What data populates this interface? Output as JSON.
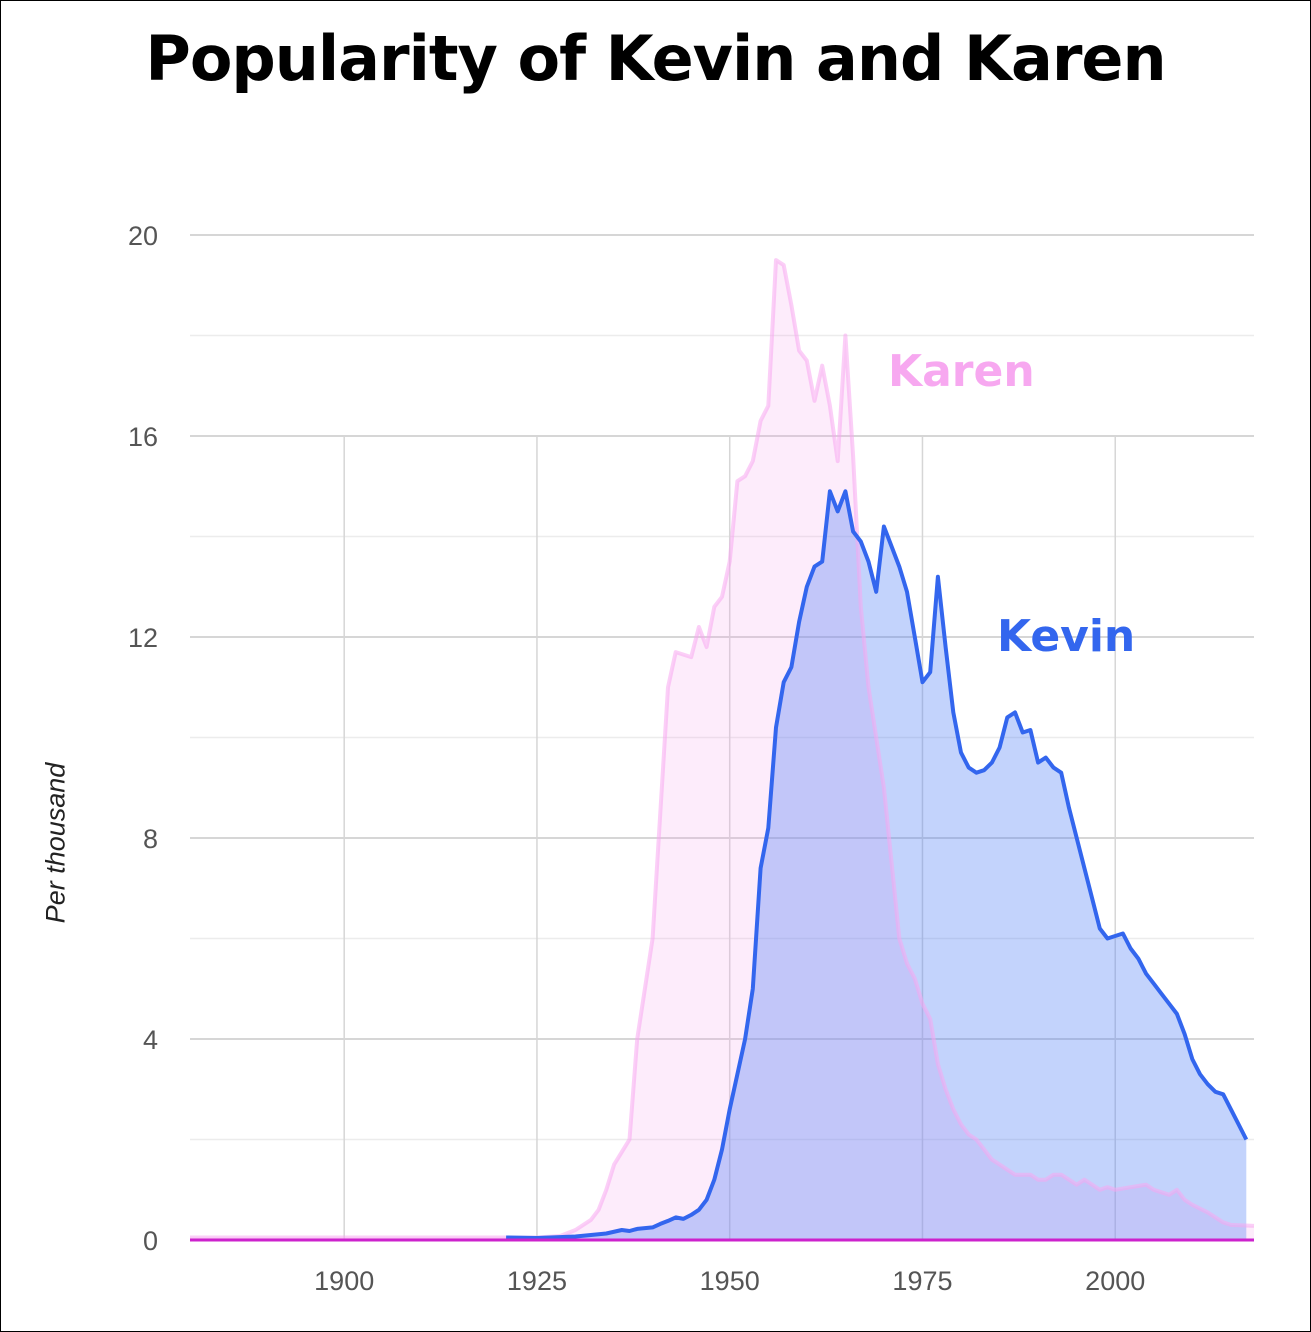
{
  "chart_data": {
    "type": "area",
    "title": "Popularity of Kevin and Karen",
    "ylabel": "Per thousand",
    "xlabel": "",
    "xlim": [
      1880,
      2018
    ],
    "ylim": [
      0,
      20
    ],
    "x_ticks": [
      1900,
      1925,
      1950,
      1975,
      2000
    ],
    "y_ticks": [
      0,
      4,
      8,
      12,
      16,
      20
    ],
    "grid": true,
    "colors": {
      "Karen": "#f7a8f0",
      "Kevin": "#3366ee",
      "baseline": "#cc22cc"
    },
    "series": [
      {
        "name": "Karen",
        "points": [
          [
            1880,
            0.05
          ],
          [
            1920,
            0.05
          ],
          [
            1925,
            0.05
          ],
          [
            1928,
            0.08
          ],
          [
            1930,
            0.2
          ],
          [
            1932,
            0.4
          ],
          [
            1933,
            0.6
          ],
          [
            1934,
            1.0
          ],
          [
            1935,
            1.5
          ],
          [
            1937,
            2.0
          ],
          [
            1938,
            4.0
          ],
          [
            1939,
            5.0
          ],
          [
            1940,
            6.0
          ],
          [
            1941,
            8.5
          ],
          [
            1942,
            11.0
          ],
          [
            1943,
            11.7
          ],
          [
            1945,
            11.6
          ],
          [
            1946,
            12.2
          ],
          [
            1947,
            11.8
          ],
          [
            1948,
            12.6
          ],
          [
            1949,
            12.8
          ],
          [
            1950,
            13.5
          ],
          [
            1951,
            15.1
          ],
          [
            1952,
            15.2
          ],
          [
            1953,
            15.5
          ],
          [
            1954,
            16.3
          ],
          [
            1955,
            16.6
          ],
          [
            1956,
            19.5
          ],
          [
            1957,
            19.4
          ],
          [
            1958,
            18.6
          ],
          [
            1959,
            17.7
          ],
          [
            1960,
            17.5
          ],
          [
            1961,
            16.7
          ],
          [
            1962,
            17.4
          ],
          [
            1963,
            16.6
          ],
          [
            1964,
            15.5
          ],
          [
            1965,
            18.0
          ],
          [
            1966,
            15.6
          ],
          [
            1967,
            12.6
          ],
          [
            1968,
            11.0
          ],
          [
            1969,
            10.0
          ],
          [
            1970,
            9.0
          ],
          [
            1971,
            7.5
          ],
          [
            1972,
            6.0
          ],
          [
            1973,
            5.5
          ],
          [
            1974,
            5.2
          ],
          [
            1975,
            4.7
          ],
          [
            1976,
            4.4
          ],
          [
            1977,
            3.5
          ],
          [
            1978,
            3.0
          ],
          [
            1979,
            2.6
          ],
          [
            1980,
            2.3
          ],
          [
            1981,
            2.1
          ],
          [
            1982,
            2.0
          ],
          [
            1983,
            1.8
          ],
          [
            1984,
            1.6
          ],
          [
            1985,
            1.5
          ],
          [
            1986,
            1.4
          ],
          [
            1987,
            1.3
          ],
          [
            1988,
            1.3
          ],
          [
            1989,
            1.3
          ],
          [
            1990,
            1.2
          ],
          [
            1991,
            1.2
          ],
          [
            1992,
            1.3
          ],
          [
            1993,
            1.3
          ],
          [
            1994,
            1.2
          ],
          [
            1995,
            1.1
          ],
          [
            1996,
            1.2
          ],
          [
            1997,
            1.1
          ],
          [
            1998,
            1.0
          ],
          [
            1999,
            1.05
          ],
          [
            2000,
            1.0
          ],
          [
            2002,
            1.05
          ],
          [
            2004,
            1.1
          ],
          [
            2005,
            1.0
          ],
          [
            2007,
            0.9
          ],
          [
            2008,
            1.0
          ],
          [
            2009,
            0.8
          ],
          [
            2010,
            0.7
          ],
          [
            2012,
            0.55
          ],
          [
            2013,
            0.45
          ],
          [
            2014,
            0.35
          ],
          [
            2015,
            0.3
          ],
          [
            2018,
            0.28
          ]
        ]
      },
      {
        "name": "Kevin",
        "points": [
          [
            1921,
            0.05
          ],
          [
            1925,
            0.04
          ],
          [
            1930,
            0.07
          ],
          [
            1932,
            0.1
          ],
          [
            1934,
            0.13
          ],
          [
            1936,
            0.2
          ],
          [
            1937,
            0.18
          ],
          [
            1938,
            0.22
          ],
          [
            1940,
            0.25
          ],
          [
            1941,
            0.32
          ],
          [
            1942,
            0.38
          ],
          [
            1943,
            0.45
          ],
          [
            1944,
            0.42
          ],
          [
            1945,
            0.5
          ],
          [
            1946,
            0.6
          ],
          [
            1947,
            0.8
          ],
          [
            1948,
            1.2
          ],
          [
            1949,
            1.8
          ],
          [
            1950,
            2.6
          ],
          [
            1951,
            3.3
          ],
          [
            1952,
            4.0
          ],
          [
            1953,
            5.0
          ],
          [
            1954,
            7.4
          ],
          [
            1955,
            8.2
          ],
          [
            1956,
            10.2
          ],
          [
            1957,
            11.1
          ],
          [
            1958,
            11.4
          ],
          [
            1959,
            12.3
          ],
          [
            1960,
            13.0
          ],
          [
            1961,
            13.4
          ],
          [
            1962,
            13.5
          ],
          [
            1963,
            14.9
          ],
          [
            1964,
            14.5
          ],
          [
            1965,
            14.9
          ],
          [
            1966,
            14.1
          ],
          [
            1967,
            13.9
          ],
          [
            1968,
            13.5
          ],
          [
            1969,
            12.9
          ],
          [
            1970,
            14.2
          ],
          [
            1971,
            13.8
          ],
          [
            1972,
            13.4
          ],
          [
            1973,
            12.9
          ],
          [
            1974,
            12.0
          ],
          [
            1975,
            11.1
          ],
          [
            1976,
            11.3
          ],
          [
            1977,
            13.2
          ],
          [
            1978,
            11.8
          ],
          [
            1979,
            10.5
          ],
          [
            1980,
            9.7
          ],
          [
            1981,
            9.4
          ],
          [
            1982,
            9.3
          ],
          [
            1983,
            9.35
          ],
          [
            1984,
            9.5
          ],
          [
            1985,
            9.8
          ],
          [
            1986,
            10.4
          ],
          [
            1987,
            10.5
          ],
          [
            1988,
            10.1
          ],
          [
            1989,
            10.15
          ],
          [
            1990,
            9.5
          ],
          [
            1991,
            9.6
          ],
          [
            1992,
            9.4
          ],
          [
            1993,
            9.3
          ],
          [
            1994,
            8.6
          ],
          [
            1995,
            8.0
          ],
          [
            1996,
            7.4
          ],
          [
            1997,
            6.8
          ],
          [
            1998,
            6.2
          ],
          [
            1999,
            6.0
          ],
          [
            2000,
            6.05
          ],
          [
            2001,
            6.1
          ],
          [
            2002,
            5.8
          ],
          [
            2003,
            5.6
          ],
          [
            2004,
            5.3
          ],
          [
            2005,
            5.1
          ],
          [
            2006,
            4.9
          ],
          [
            2007,
            4.7
          ],
          [
            2008,
            4.5
          ],
          [
            2009,
            4.1
          ],
          [
            2010,
            3.6
          ],
          [
            2011,
            3.3
          ],
          [
            2012,
            3.1
          ],
          [
            2013,
            2.95
          ],
          [
            2014,
            2.9
          ],
          [
            2015,
            2.6
          ],
          [
            2016,
            2.3
          ],
          [
            2017,
            2.0
          ]
        ]
      }
    ]
  }
}
